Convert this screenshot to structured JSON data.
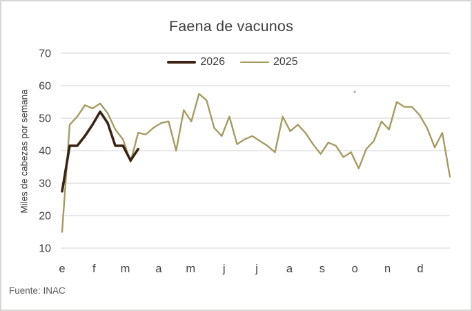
{
  "window": {
    "background": "#ffffff",
    "border_color": "#d8d5d5"
  },
  "chart_data": {
    "type": "line",
    "title": "Faena de vacunos",
    "xlabel": "",
    "ylabel": "Miles de cabezas por semana",
    "x_unit": "week-of-year",
    "weeks": 52,
    "ylim": [
      10,
      70
    ],
    "yticks": [
      70,
      60,
      50,
      40,
      30,
      20,
      10
    ],
    "grid": "horizontal",
    "grid_color": "#d9d9d9",
    "axis_text_color": "#404040",
    "legend_position": "top-center",
    "month_labels": [
      "e",
      "f",
      "m",
      "a",
      "m",
      "j",
      "j",
      "a",
      "s",
      "o",
      "n",
      "d"
    ],
    "month_week_positions": [
      1.0,
      5.2,
      9.3,
      13.7,
      17.9,
      22.3,
      26.6,
      30.9,
      35.2,
      39.5,
      43.8,
      48.1
    ],
    "series": [
      {
        "name": "2026",
        "color": "#3B2314",
        "line_width": 3.6,
        "start_week": 1,
        "values": [
          27.5,
          41.5,
          41.5,
          44.5,
          48,
          52,
          48.5,
          41.5,
          41.5,
          37,
          40.5
        ]
      },
      {
        "name": "2025",
        "color": "#A49B60",
        "line_width": 2.4,
        "start_week": 1,
        "values": [
          15,
          48,
          50.5,
          54,
          53,
          54.5,
          51.5,
          46.5,
          43.5,
          36.5,
          45.5,
          45,
          47,
          48.5,
          49,
          40,
          52.5,
          49,
          57.5,
          55.5,
          47,
          44.5,
          50.5,
          42,
          43.5,
          44.5,
          43,
          41.5,
          39.5,
          50.5,
          46,
          48,
          45.5,
          42,
          39,
          42.5,
          41.5,
          38,
          39.5,
          34.5,
          40.5,
          43,
          49,
          46.5,
          55,
          53.5,
          53.5,
          51,
          47,
          41,
          45.5,
          32
        ]
      }
    ],
    "artifact_dot": {
      "x": 512,
      "y": 131,
      "color": "#aaa2a2"
    }
  },
  "footer": {
    "source": "Fuente: INAC"
  }
}
